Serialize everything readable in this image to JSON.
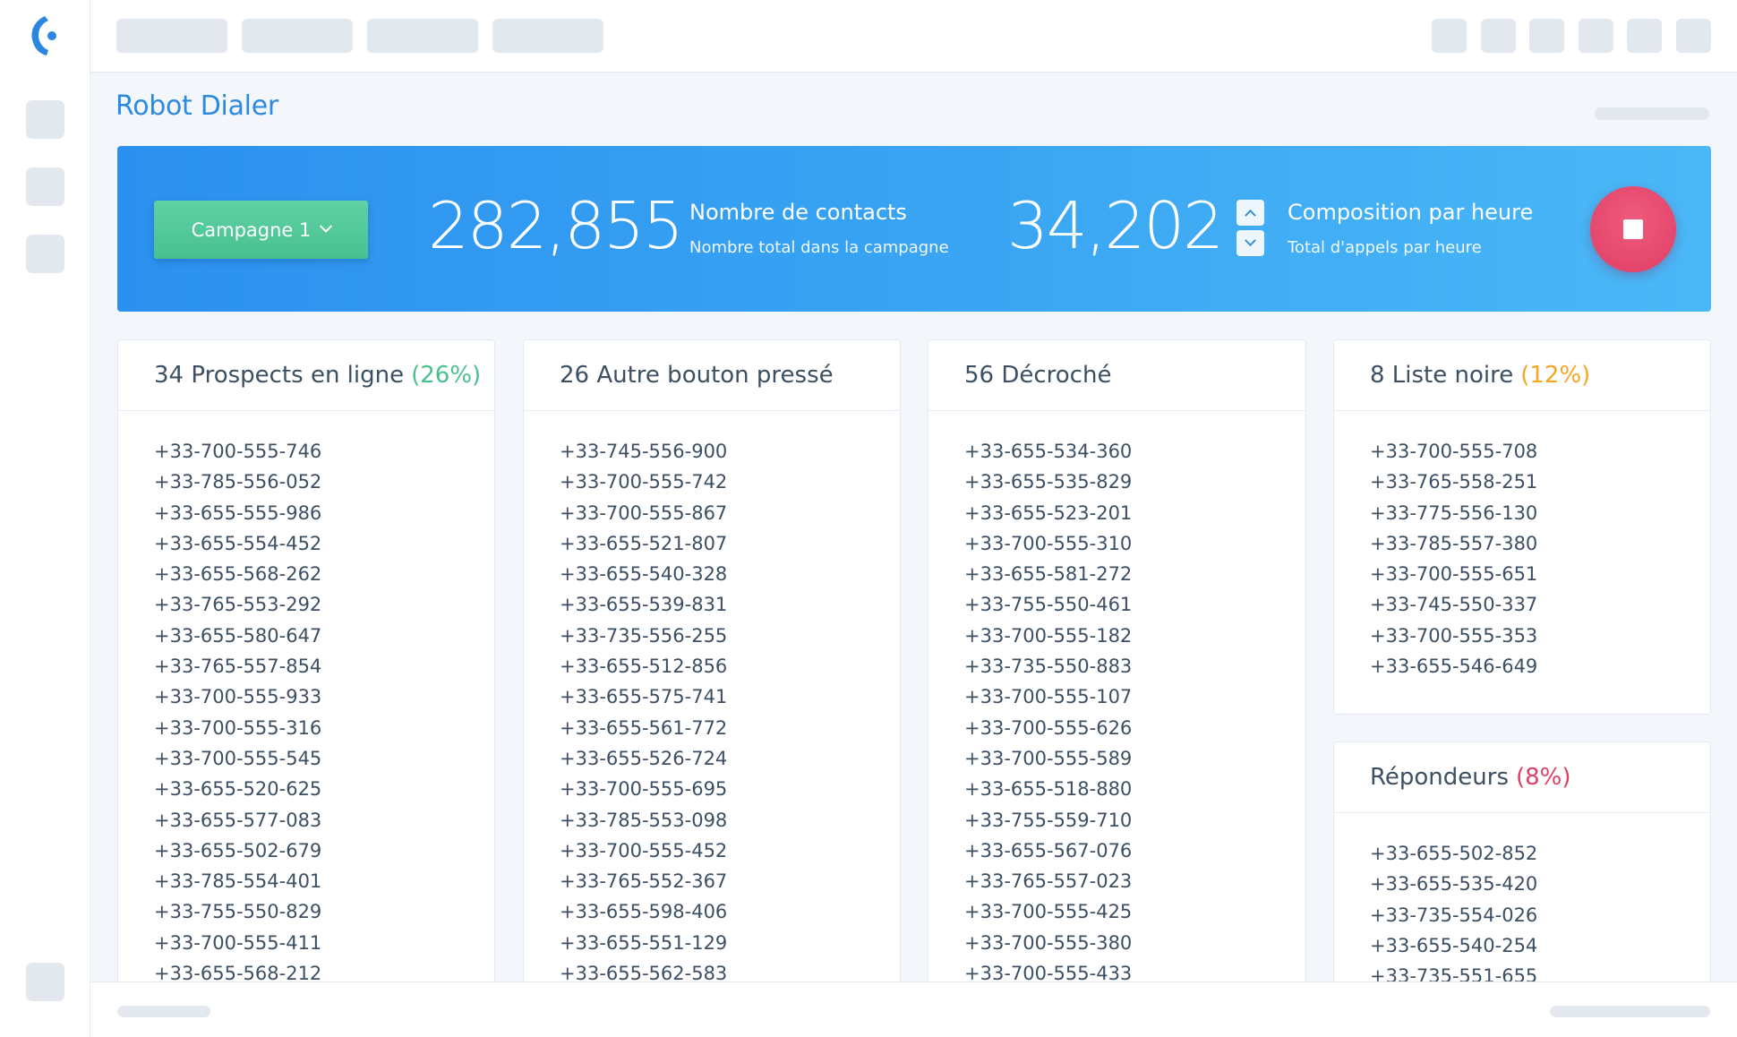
{
  "app": {
    "title": "Robot Dialer"
  },
  "colors": {
    "accent": "#2c8be0",
    "green": "#49c18f",
    "orange": "#f5a623",
    "pink": "#e03e64"
  },
  "hero": {
    "campaign_label": "Campagne 1",
    "contacts_value": "282,855",
    "contacts_label": "Nombre de contacts",
    "contacts_sub": "Nombre total dans la campagne",
    "rate_value": "34,202",
    "rate_label": "Composition par heure",
    "rate_sub": "Total d'appels par heure"
  },
  "cards": {
    "prospects": {
      "title": "34 Prospects en ligne",
      "percent": "(26%)",
      "items": [
        "+33-700-555-746",
        "+33-785-556-052",
        "+33-655-555-986",
        "+33-655-554-452",
        "+33-655-568-262",
        "+33-765-553-292",
        "+33-655-580-647",
        "+33-765-557-854",
        "+33-700-555-933",
        "+33-700-555-316",
        "+33-700-555-545",
        "+33-655-520-625",
        "+33-655-577-083",
        "+33-655-502-679",
        "+33-785-554-401",
        "+33-755-550-829",
        "+33-700-555-411",
        "+33-655-568-212"
      ]
    },
    "other": {
      "title": "26 Autre bouton pressé",
      "items": [
        "+33-745-556-900",
        "+33-700-555-742",
        "+33-700-555-867",
        "+33-655-521-807",
        "+33-655-540-328",
        "+33-655-539-831",
        "+33-735-556-255",
        "+33-655-512-856",
        "+33-655-575-741",
        "+33-655-561-772",
        "+33-655-526-724",
        "+33-700-555-695",
        "+33-785-553-098",
        "+33-700-555-452",
        "+33-765-552-367",
        "+33-655-598-406",
        "+33-655-551-129",
        "+33-655-562-583"
      ]
    },
    "answered": {
      "title": "56 Décroché",
      "items": [
        "+33-655-534-360",
        "+33-655-535-829",
        "+33-655-523-201",
        "+33-700-555-310",
        "+33-655-581-272",
        "+33-755-550-461",
        "+33-700-555-182",
        "+33-735-550-883",
        "+33-700-555-107",
        "+33-700-555-626",
        "+33-700-555-589",
        "+33-655-518-880",
        "+33-755-559-710",
        "+33-655-567-076",
        "+33-765-557-023",
        "+33-700-555-425",
        "+33-700-555-380",
        "+33-700-555-433"
      ]
    },
    "blacklist": {
      "title": "8 Liste noire",
      "percent": "(12%)",
      "items": [
        "+33-700-555-708",
        "+33-765-558-251",
        "+33-775-556-130",
        "+33-785-557-380",
        "+33-700-555-651",
        "+33-745-550-337",
        "+33-700-555-353",
        "+33-655-546-649"
      ]
    },
    "machines": {
      "title": "Répondeurs",
      "percent": "(8%)",
      "items": [
        "+33-655-502-852",
        "+33-655-535-420",
        "+33-735-554-026",
        "+33-655-540-254",
        "+33-735-551-655"
      ]
    }
  }
}
